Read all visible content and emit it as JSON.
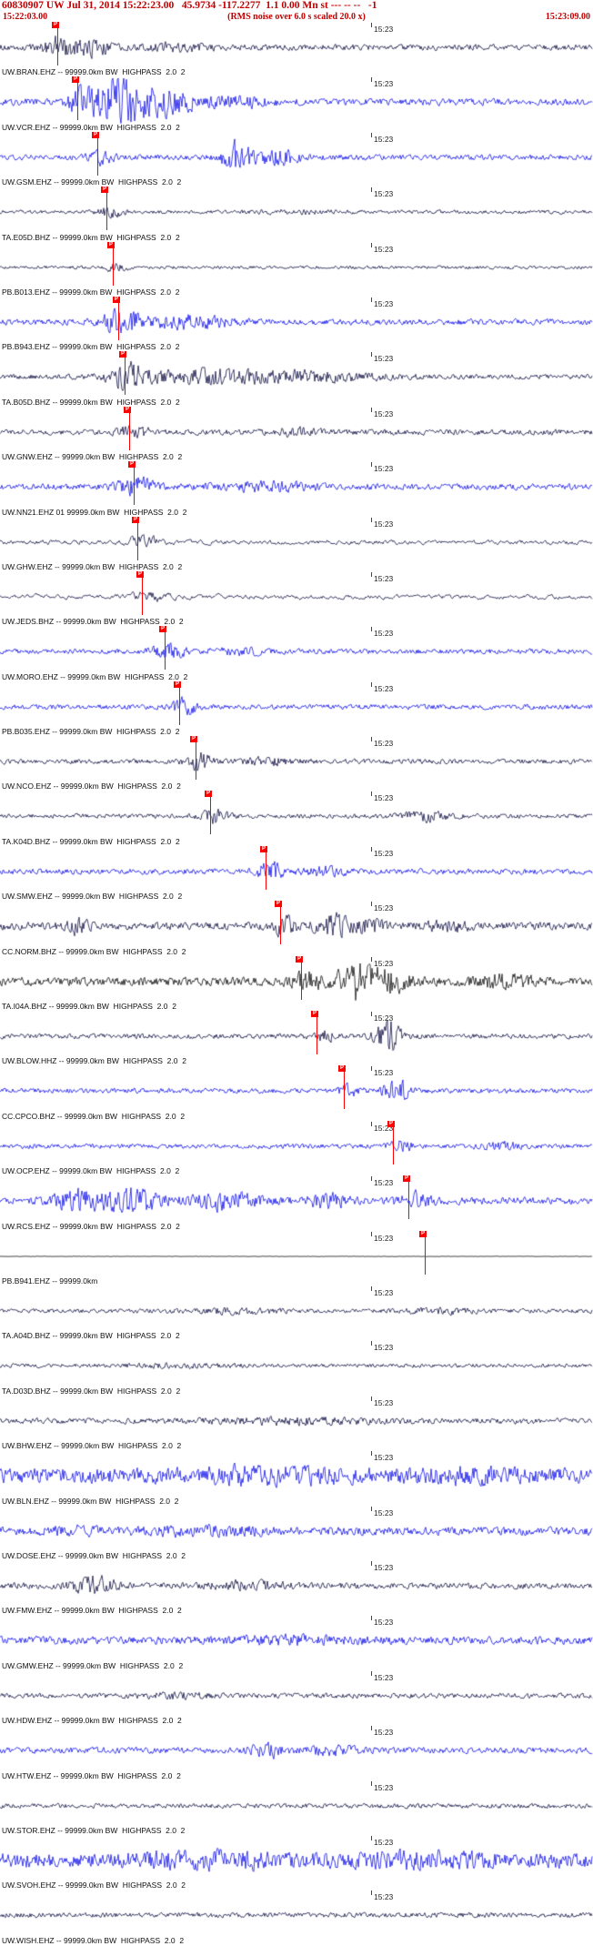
{
  "header": {
    "title": "60830907 UW Jul 31, 2014 15:22:23.00   45.9734 -117.2277  1.1 0.00 Mn st --- -- --   -1",
    "start_time": "15:22:03.00",
    "note": "(RMS noise over 6.0 s scaled 20.0 x)",
    "end_time": "15:23:09.00",
    "accent_color": "#c00000"
  },
  "timeline": {
    "minute_label": "15:23",
    "minute_x": 408
  },
  "pick_label": "P",
  "colors": {
    "dark": "#000038",
    "blue": "#0000e8",
    "black": "#000000",
    "pick": "#ff0000"
  },
  "traces": [
    {
      "label": "UW.BRAN.EHZ -- 99999.0km BW  HIGHPASS  2.0  2",
      "color": "dark",
      "pick": 63,
      "base": 2.2,
      "lf": 0.3,
      "bursts": [
        [
          0.1,
          25,
          7
        ],
        [
          0.155,
          30,
          5
        ],
        [
          0.3,
          60,
          2
        ]
      ]
    },
    {
      "label": "UW.VCR.EHZ -- 99999.0km BW  HIGHPASS  2.0  2",
      "color": "blue",
      "pick": 85,
      "base": 2.5,
      "lf": 0.3,
      "bursts": [
        [
          0.135,
          20,
          8
        ],
        [
          0.2,
          45,
          20
        ],
        [
          0.285,
          40,
          9
        ],
        [
          0.4,
          60,
          3
        ]
      ]
    },
    {
      "label": "UW.GSM.EHZ -- 99999.0km BW  HIGHPASS  2.0  2",
      "color": "blue",
      "pick": 107,
      "base": 2.0,
      "lf": 0.3,
      "bursts": [
        [
          0.17,
          20,
          5
        ],
        [
          0.4,
          25,
          13
        ],
        [
          0.47,
          40,
          5
        ]
      ]
    },
    {
      "label": "TA.E05D.BHZ -- 99999.0km BW  HIGHPASS  2.0  2",
      "color": "dark",
      "pick": 117,
      "base": 1.4,
      "lf": 0.35,
      "bursts": [
        [
          0.185,
          25,
          3.5
        ],
        [
          0.5,
          80,
          1
        ]
      ]
    },
    {
      "label": "PB.B013.EHZ -- 99999.0km BW  HIGHPASS  2.0  2",
      "color": "dark",
      "pick": 124,
      "base": 1.2,
      "lf": 0.3,
      "bursts": [
        [
          0.195,
          20,
          2.5
        ]
      ]
    },
    {
      "label": "PB.B943.EHZ -- 99999.0km BW  HIGHPASS  2.0  2",
      "color": "blue",
      "pick": 130,
      "base": 2.2,
      "lf": 0.3,
      "bursts": [
        [
          0.205,
          35,
          8
        ],
        [
          0.32,
          70,
          4
        ]
      ]
    },
    {
      "label": "TA.B05D.BHZ -- 99999.0km BW  HIGHPASS  2.0  2",
      "color": "dark",
      "pick": 137,
      "base": 1.8,
      "lf": 0.3,
      "bursts": [
        [
          0.215,
          30,
          8
        ],
        [
          0.35,
          120,
          5
        ],
        [
          0.55,
          100,
          3
        ]
      ]
    },
    {
      "label": "UW.GNW.EHZ -- 99999.0km BW  HIGHPASS  2.0  2",
      "color": "dark",
      "pick": 142,
      "base": 2.0,
      "lf": 0.3,
      "bursts": [
        [
          0.225,
          25,
          4
        ],
        [
          0.5,
          40,
          2
        ]
      ]
    },
    {
      "label": "UW.NN21.EHZ 01 99999.0km BW  HIGHPASS  2.0  2",
      "color": "blue",
      "pick": 147,
      "base": 2.2,
      "lf": 0.3,
      "bursts": [
        [
          0.23,
          30,
          6
        ],
        [
          0.45,
          80,
          2.5
        ]
      ]
    },
    {
      "label": "UW.GHW.EHZ -- 99999.0km BW  HIGHPASS  2.0  2",
      "color": "dark",
      "pick": 151,
      "base": 2.4,
      "lf": 0.6,
      "bursts": [
        [
          0.24,
          30,
          5
        ]
      ]
    },
    {
      "label": "UW.JEDS.BHZ -- 99999.0km BW  HIGHPASS  2.0  2",
      "color": "dark",
      "pick": 156,
      "base": 2.6,
      "lf": 0.65,
      "bursts": [
        [
          0.25,
          35,
          5
        ]
      ]
    },
    {
      "label": "UW.MORO.EHZ -- 99999.0km BW  HIGHPASS  2.0  2",
      "color": "blue",
      "pick": 181,
      "base": 1.8,
      "lf": 0.3,
      "bursts": [
        [
          0.285,
          25,
          6
        ],
        [
          0.4,
          50,
          2
        ]
      ]
    },
    {
      "label": "PB.B035.EHZ -- 99999.0km BW  HIGHPASS  2.0  2",
      "color": "blue",
      "pick": 197,
      "base": 1.8,
      "lf": 0.3,
      "bursts": [
        [
          0.31,
          22,
          6
        ]
      ]
    },
    {
      "label": "UW.NCO.EHZ -- 99999.0km BW  HIGHPASS  2.0  2",
      "color": "dark",
      "pick": 215,
      "base": 1.8,
      "lf": 0.3,
      "bursts": [
        [
          0.335,
          20,
          7
        ],
        [
          0.45,
          40,
          2.5
        ]
      ]
    },
    {
      "label": "TA.K04D.BHZ -- 99999.0km BW  HIGHPASS  2.0  2",
      "color": "dark",
      "pick": 231,
      "base": 1.6,
      "lf": 0.3,
      "bursts": [
        [
          0.36,
          25,
          4.5
        ],
        [
          0.72,
          40,
          3
        ]
      ]
    },
    {
      "label": "UW.SMW.EHZ -- 99999.0km BW  HIGHPASS  2.0  2",
      "color": "blue",
      "pick": 292,
      "base": 2.0,
      "lf": 0.3,
      "bursts": [
        [
          0.455,
          22,
          6
        ],
        [
          0.55,
          40,
          2.5
        ]
      ]
    },
    {
      "label": "CC.NORM.BHZ -- 99999.0km BW  HIGHPASS  2.0  2",
      "color": "dark",
      "pick": 308,
      "base": 2.8,
      "lf": 0.3,
      "bursts": [
        [
          0.13,
          25,
          4
        ],
        [
          0.48,
          18,
          6
        ],
        [
          0.56,
          30,
          7
        ],
        [
          0.62,
          25,
          5
        ],
        [
          0.75,
          40,
          3
        ]
      ]
    },
    {
      "label": "TA.I04A.BHZ -- 99999.0km BW  HIGHPASS  2.0  2",
      "color": "black",
      "pick": 331,
      "base": 3.2,
      "lf": 0.3,
      "bursts": [
        [
          0.52,
          25,
          6
        ],
        [
          0.6,
          30,
          13
        ],
        [
          0.655,
          40,
          7
        ],
        [
          0.85,
          50,
          4
        ]
      ]
    },
    {
      "label": "UW.BLOW.HHZ -- 99999.0km BW  HIGHPASS  2.0  2",
      "color": "dark",
      "pick": 348,
      "base": 1.8,
      "lf": 0.3,
      "bursts": [
        [
          0.545,
          20,
          4
        ],
        [
          0.655,
          22,
          11
        ]
      ]
    },
    {
      "label": "CC.CPCO.BHZ -- 99999.0km BW  HIGHPASS  2.0  2",
      "color": "blue",
      "pick": 378,
      "base": 1.8,
      "lf": 0.3,
      "bursts": [
        [
          0.59,
          20,
          4
        ],
        [
          0.67,
          22,
          7
        ]
      ]
    },
    {
      "label": "UW.OCP.EHZ -- 99999.0km BW  HIGHPASS  2.0  2",
      "color": "blue",
      "pick": 432,
      "base": 1.7,
      "lf": 0.3,
      "bursts": [
        [
          0.675,
          20,
          4
        ],
        [
          0.85,
          40,
          2
        ]
      ]
    },
    {
      "label": "UW.RCS.EHZ -- 99999.0km BW  HIGHPASS  2.0  2",
      "color": "blue",
      "pick": 449,
      "base": 2.6,
      "lf": 0.3,
      "bursts": [
        [
          0.13,
          40,
          7
        ],
        [
          0.225,
          50,
          8
        ],
        [
          0.38,
          50,
          6
        ],
        [
          0.55,
          40,
          4
        ],
        [
          0.7,
          30,
          5
        ]
      ]
    },
    {
      "label": "PB.B941.EHZ -- 99999.0km",
      "color": "black",
      "pick": 467,
      "base": 0.15,
      "lf": 0.3,
      "bursts": []
    },
    {
      "label": "TA.A04D.BHZ -- 99999.0km BW  HIGHPASS  2.0  2",
      "color": "dark",
      "pick": null,
      "base": 1.5,
      "lf": 0.3,
      "bursts": [
        [
          0.4,
          80,
          1.5
        ],
        [
          0.75,
          60,
          1.5
        ]
      ]
    },
    {
      "label": "TA.D03D.BHZ -- 99999.0km BW  HIGHPASS  2.0  2",
      "color": "dark",
      "pick": null,
      "base": 1.4,
      "lf": 0.3,
      "bursts": [
        [
          0.3,
          100,
          1
        ]
      ]
    },
    {
      "label": "UW.BHW.EHZ -- 99999.0km BW  HIGHPASS  2.0  2",
      "color": "dark",
      "pick": null,
      "base": 2.0,
      "lf": 0.3,
      "bursts": [
        [
          0.5,
          150,
          1.5
        ]
      ]
    },
    {
      "label": "UW.BLN.EHZ -- 99999.0km BW  HIGHPASS  2.0  2",
      "color": "blue",
      "pick": null,
      "base": 5.5,
      "lf": 0.3,
      "bursts": [
        [
          0.45,
          120,
          3
        ],
        [
          0.78,
          80,
          2.5
        ]
      ]
    },
    {
      "label": "UW.DOSE.EHZ -- 99999.0km BW  HIGHPASS  2.0  2",
      "color": "blue",
      "pick": null,
      "base": 3.0,
      "lf": 0.3,
      "bursts": [
        [
          0.12,
          40,
          2.5
        ],
        [
          0.35,
          100,
          2
        ]
      ]
    },
    {
      "label": "UW.FMW.EHZ -- 99999.0km BW  HIGHPASS  2.0  2",
      "color": "dark",
      "pick": null,
      "base": 2.2,
      "lf": 0.3,
      "bursts": [
        [
          0.16,
          35,
          6
        ],
        [
          0.42,
          60,
          2.5
        ]
      ]
    },
    {
      "label": "UW.GMW.EHZ -- 99999.0km BW  HIGHPASS  2.0  2",
      "color": "blue",
      "pick": null,
      "base": 2.8,
      "lf": 0.3,
      "bursts": [
        [
          0.5,
          120,
          2
        ]
      ]
    },
    {
      "label": "UW.HDW.EHZ -- 99999.0km BW  HIGHPASS  2.0  2",
      "color": "dark",
      "pick": null,
      "base": 1.8,
      "lf": 0.3,
      "bursts": [
        [
          0.3,
          60,
          1.5
        ]
      ]
    },
    {
      "label": "UW.HTW.EHZ -- 99999.0km BW  HIGHPASS  2.0  2",
      "color": "blue",
      "pick": null,
      "base": 2.2,
      "lf": 0.3,
      "bursts": [
        [
          0.45,
          25,
          5
        ],
        [
          0.56,
          40,
          3
        ]
      ]
    },
    {
      "label": "UW.STOR.EHZ -- 99999.0km BW  HIGHPASS  2.0  2",
      "color": "dark",
      "pick": null,
      "base": 1.7,
      "lf": 0.3,
      "bursts": []
    },
    {
      "label": "UW.SVOH.EHZ -- 99999.0km BW  HIGHPASS  2.0  2",
      "color": "blue",
      "pick": null,
      "base": 5.5,
      "lf": 0.3,
      "bursts": [
        [
          0.35,
          120,
          3
        ],
        [
          0.7,
          100,
          3
        ]
      ]
    },
    {
      "label": "UW.WISH.EHZ -- 99999.0km BW  HIGHPASS  2.0  2",
      "color": "dark",
      "pick": null,
      "base": 1.8,
      "lf": 0.3,
      "bursts": []
    }
  ]
}
